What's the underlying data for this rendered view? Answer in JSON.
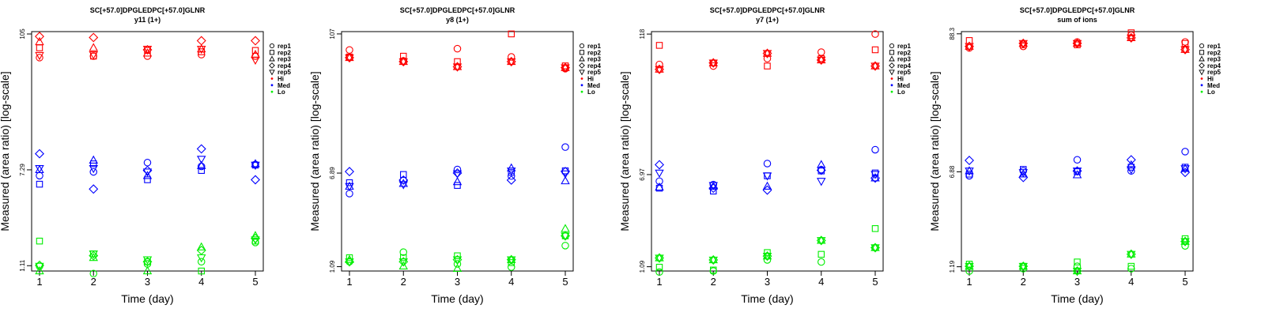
{
  "palette": {
    "Hi": "#ff0000",
    "Med": "#0000ff",
    "Lo": "#00ee00"
  },
  "legend": [
    {
      "label": "rep1",
      "shape": "circle"
    },
    {
      "label": "rep2",
      "shape": "square"
    },
    {
      "label": "rep3",
      "shape": "triangle"
    },
    {
      "label": "rep4",
      "shape": "diamond"
    },
    {
      "label": "rep5",
      "shape": "invtriangle"
    },
    {
      "label": "Hi",
      "shape": "dot",
      "group": "Hi"
    },
    {
      "label": "Med",
      "shape": "dot",
      "group": "Med"
    },
    {
      "label": "Lo",
      "shape": "dot",
      "group": "Lo"
    }
  ],
  "chart_data": [
    {
      "type": "scatter",
      "title": "SC[+57.0]DPGLEDPC[+57.0]GLNR",
      "subtitle": "y11 (1+)",
      "xlabel": "Time (day)",
      "ylabel": "Measured (area ratio) [log-scale]",
      "log_y": true,
      "x_ticks": [
        1,
        2,
        3,
        4,
        5
      ],
      "y_ticks": [
        1.11,
        7.29,
        105
      ],
      "y_tick_labels": [
        "1.11",
        "7.29",
        "105"
      ],
      "ylim": [
        1.0,
        110
      ],
      "legend_position": "right",
      "groups": [
        {
          "group": "Hi",
          "reps": [
            [
              66,
              68,
              68,
              70,
              68
            ],
            [
              80,
              68,
              76,
              74,
              76
            ],
            [
              90,
              80,
              72,
              78,
              70
            ],
            [
              100,
              98,
              77,
              92,
              92
            ],
            [
              69,
              70,
              78,
              78,
              63
            ]
          ]
        },
        {
          "group": "Med",
          "reps": [
            [
              6.5,
              7.0,
              8.4,
              7.8,
              8.1
            ],
            [
              5.5,
              8.2,
              6.0,
              7.2,
              8.0
            ],
            [
              7.3,
              8.8,
              6.5,
              7.9,
              8.2
            ],
            [
              10.0,
              5.0,
              7.2,
              11.0,
              6.0
            ],
            [
              7.5,
              7.5,
              7.0,
              9.0,
              8.0
            ]
          ]
        },
        {
          "group": "Lo",
          "reps": [
            [
              1.1,
              0.95,
              1.15,
              1.2,
              1.75
            ],
            [
              1.8,
              1.4,
              1.2,
              1.0,
              1.8
            ],
            [
              1.0,
              1.3,
              1.0,
              1.6,
              2.0
            ],
            [
              1.12,
              1.35,
              1.2,
              1.5,
              1.9
            ],
            [
              1.1,
              1.4,
              1.25,
              1.3,
              1.85
            ]
          ]
        }
      ]
    },
    {
      "type": "scatter",
      "title": "SC[+57.0]DPGLEDPC[+57.0]GLNR",
      "subtitle": "y8 (1+)",
      "xlabel": "Time (day)",
      "ylabel": "Measured (area ratio) [log-scale]",
      "log_y": true,
      "x_ticks": [
        1,
        2,
        3,
        4,
        5
      ],
      "y_ticks": [
        1.09,
        6.89,
        107
      ],
      "y_tick_labels": [
        "1.09",
        "6.89",
        "107"
      ],
      "ylim": [
        1.0,
        112
      ],
      "legend_position": "right",
      "groups": [
        {
          "group": "Hi",
          "reps": [
            [
              78,
              63,
              80,
              68,
              54
            ],
            [
              68,
              69,
              62,
              107,
              57
            ],
            [
              67,
              62,
              56,
              62,
              55
            ],
            [
              67,
              62,
              56,
              62,
              55
            ],
            [
              67,
              62,
              56,
              62,
              55
            ]
          ]
        },
        {
          "group": "Med",
          "reps": [
            [
              4.6,
              6.0,
              7.4,
              6.5,
              11.5
            ],
            [
              5.7,
              6.7,
              5.4,
              7.0,
              7.2
            ],
            [
              5.3,
              5.6,
              5.8,
              7.6,
              5.9
            ],
            [
              7.1,
              6.0,
              6.9,
              6.0,
              7.1
            ],
            [
              5.3,
              5.5,
              6.8,
              7.2,
              6.8
            ]
          ]
        },
        {
          "group": "Lo",
          "reps": [
            [
              1.2,
              1.45,
              1.15,
              1.08,
              1.65
            ],
            [
              1.3,
              1.3,
              1.35,
              1.18,
              2.0
            ],
            [
              1.25,
              1.1,
              1.05,
              1.25,
              2.3
            ],
            [
              1.2,
              1.2,
              1.25,
              1.25,
              2.0
            ],
            [
              1.2,
              1.2,
              1.25,
              1.25,
              2.0
            ]
          ]
        }
      ]
    },
    {
      "type": "scatter",
      "title": "SC[+57.0]DPGLEDPC[+57.0]GLNR",
      "subtitle": "y7 (1+)",
      "xlabel": "Time (day)",
      "ylabel": "Measured (area ratio) [log-scale]",
      "log_y": true,
      "x_ticks": [
        1,
        2,
        3,
        4,
        5
      ],
      "y_ticks": [
        1.09,
        6.97,
        118
      ],
      "y_tick_labels": [
        "1.09",
        "6.97",
        "118"
      ],
      "ylim": [
        1.0,
        124
      ],
      "legend_position": "right",
      "groups": [
        {
          "group": "Hi",
          "reps": [
            [
              64,
              62,
              72,
              82,
              118
            ],
            [
              94,
              66,
              62,
              72,
              86
            ],
            [
              58,
              66,
              80,
              70,
              62
            ],
            [
              58,
              66,
              80,
              70,
              62
            ],
            [
              58,
              66,
              80,
              70,
              62
            ]
          ]
        },
        {
          "group": "Med",
          "reps": [
            [
              6.1,
              5.7,
              8.7,
              7.7,
              11.5
            ],
            [
              5.3,
              5.0,
              6.8,
              7.5,
              7.2
            ],
            [
              5.4,
              5.5,
              5.5,
              8.5,
              6.5
            ],
            [
              8.5,
              5.3,
              5.1,
              7.6,
              6.5
            ],
            [
              7.2,
              5.6,
              6.8,
              6.1,
              7.0
            ]
          ]
        },
        {
          "group": "Lo",
          "reps": [
            [
              0.98,
              1.0,
              1.25,
              1.2,
              1.6
            ],
            [
              1.08,
              1.02,
              1.45,
              1.4,
              2.35
            ],
            [
              1.3,
              1.25,
              1.35,
              1.85,
              1.6
            ],
            [
              1.3,
              1.25,
              1.35,
              1.85,
              1.6
            ],
            [
              1.3,
              1.25,
              1.35,
              1.85,
              1.6
            ]
          ]
        }
      ]
    },
    {
      "type": "scatter",
      "title": "SC[+57.0]DPGLEDPC[+57.0]GLNR",
      "subtitle": "sum of ions",
      "xlabel": "Time (day)",
      "ylabel": "Measured (area ratio) [log-scale]",
      "log_y": true,
      "x_ticks": [
        1,
        2,
        3,
        4,
        5
      ],
      "y_ticks": [
        1.19,
        6.88,
        88.3
      ],
      "y_tick_labels": [
        "1.19",
        "6.88",
        "88.3"
      ],
      "ylim": [
        1.1,
        92
      ],
      "legend_position": "right",
      "groups": [
        {
          "group": "Hi",
          "reps": [
            [
              68,
              70,
              76,
              86,
              76
            ],
            [
              78,
              72,
              72,
              90,
              74
            ],
            [
              70,
              74,
              74,
              82,
              66
            ],
            [
              70,
              74,
              74,
              82,
              66
            ],
            [
              70,
              74,
              74,
              82,
              66
            ]
          ]
        },
        {
          "group": "Med",
          "reps": [
            [
              6.4,
              7.0,
              8.6,
              7.0,
              10.0
            ],
            [
              6.6,
              7.2,
              6.9,
              7.5,
              7.5
            ],
            [
              7.0,
              6.6,
              6.5,
              7.8,
              7.3
            ],
            [
              8.5,
              6.2,
              7.0,
              8.6,
              6.8
            ],
            [
              7.0,
              6.8,
              7.0,
              7.2,
              7.3
            ]
          ]
        },
        {
          "group": "Lo",
          "reps": [
            [
              1.1,
              1.15,
              1.2,
              1.15,
              1.75
            ],
            [
              1.25,
              1.2,
              1.3,
              1.2,
              2.0
            ],
            [
              1.2,
              1.2,
              1.1,
              1.5,
              1.9
            ],
            [
              1.2,
              1.2,
              1.1,
              1.5,
              1.9
            ],
            [
              1.2,
              1.2,
              1.1,
              1.5,
              1.9
            ]
          ]
        }
      ]
    }
  ]
}
